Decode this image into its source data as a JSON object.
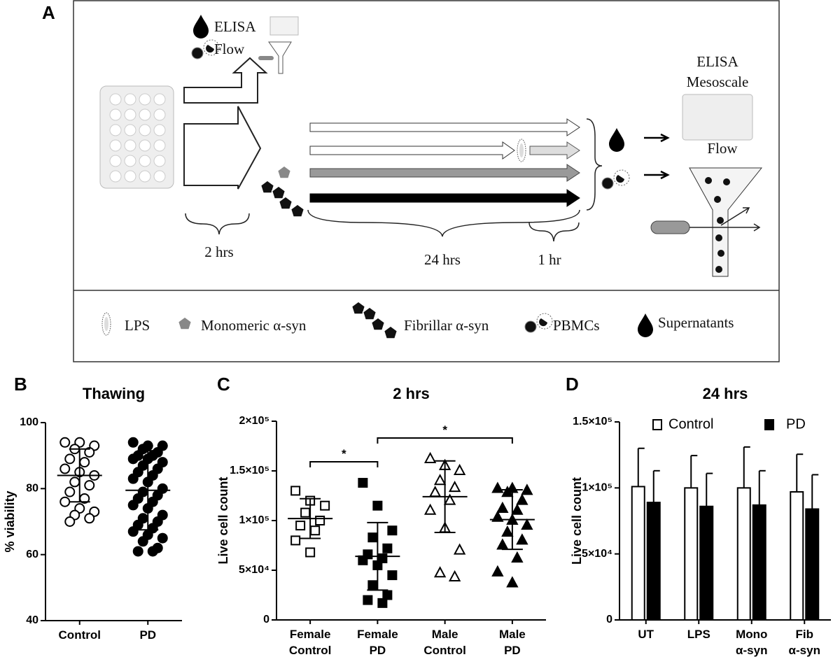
{
  "diagram": {
    "panel": "A",
    "top_labels": [
      "ELISA",
      "Flow"
    ],
    "durations": [
      "2 hrs",
      "24 hrs",
      "1 hr"
    ],
    "output_labels": [
      "ELISA",
      "Mesoscale",
      "Flow"
    ],
    "legend": [
      "LPS",
      "Monomeric α-syn",
      "Fibrillar α-syn",
      "PBMCs",
      "Supernatants"
    ]
  },
  "chart_data": [
    {
      "type": "dot",
      "panel": "B",
      "title": "Thawing",
      "ylabel": "% viability",
      "categories": [
        [
          "Control"
        ],
        [
          "PD"
        ]
      ],
      "values": [
        [
          94,
          94,
          93,
          92,
          91,
          89,
          88,
          86,
          85,
          84,
          82,
          81,
          79,
          77,
          76,
          74,
          73,
          72,
          71,
          70
        ],
        [
          94,
          93,
          93,
          92,
          91,
          90,
          90,
          89,
          89,
          88,
          87,
          86,
          85,
          84,
          83,
          82,
          80,
          79,
          78,
          77,
          76,
          75,
          74,
          72,
          71,
          70,
          69,
          68,
          67,
          66,
          65,
          64,
          62,
          61,
          61
        ]
      ],
      "means": [
        84,
        79.5
      ],
      "sds": [
        8,
        12
      ],
      "markers": [
        "open-circle",
        "filled-circle"
      ],
      "color": "#000000",
      "ylim": [
        40,
        100
      ],
      "yticks": [
        40,
        60,
        80,
        100
      ]
    },
    {
      "type": "dot",
      "panel": "C",
      "title": "2 hrs",
      "ylabel": "Live cell count",
      "categories": [
        [
          "Female",
          "Control"
        ],
        [
          "Female",
          "PD"
        ],
        [
          "Male",
          "Control"
        ],
        [
          "Male",
          "PD"
        ]
      ],
      "values": [
        [
          130000,
          120000,
          115000,
          108000,
          100000,
          95000,
          90000,
          80000,
          68000
        ],
        [
          138000,
          115000,
          90000,
          83000,
          72000,
          66000,
          62000,
          60000,
          55000,
          45000,
          35000,
          25000,
          20000,
          17000
        ],
        [
          162000,
          155000,
          150000,
          140000,
          133000,
          128000,
          120000,
          110000,
          92000,
          70000,
          47000,
          43000
        ],
        [
          132000,
          132000,
          130000,
          128000,
          120000,
          112000,
          110000,
          103000,
          100000,
          95000,
          88000,
          80000,
          75000,
          62000,
          48000,
          37000
        ]
      ],
      "means": [
        102000,
        64000,
        124000,
        101000
      ],
      "sds": [
        20000,
        34000,
        36000,
        30000
      ],
      "markers": [
        "open-square",
        "filled-square",
        "open-triangle",
        "filled-triangle"
      ],
      "color": "#000000",
      "annotations": [
        {
          "label": "*",
          "categories": [
            0,
            1
          ]
        },
        {
          "label": "*",
          "categories": [
            1,
            3
          ]
        }
      ],
      "ylim": [
        0,
        200000
      ],
      "yticks": [
        0,
        {
          "value": 50000,
          "label": "5×10⁴"
        },
        {
          "value": 100000,
          "label": "1×10⁵"
        },
        {
          "value": 150000,
          "label": "1.5×10⁵"
        },
        {
          "value": 200000,
          "label": "2×10⁵"
        }
      ]
    },
    {
      "type": "bar",
      "panel": "D",
      "title": "24 hrs",
      "ylabel": "Live cell count",
      "categories": [
        [
          "UT"
        ],
        [
          "LPS"
        ],
        [
          "Mono",
          "α-syn"
        ],
        [
          "Fib",
          "α-syn"
        ]
      ],
      "series": [
        {
          "name": "Control",
          "color": "#ffffff",
          "values": [
            101000,
            100000,
            100000,
            97000
          ],
          "errors": [
            29000,
            24500,
            31000,
            28500
          ]
        },
        {
          "name": "PD",
          "color": "#000000",
          "values": [
            89000,
            86000,
            87000,
            84000
          ],
          "errors": [
            24000,
            25000,
            26000,
            26000
          ]
        }
      ],
      "legend": "top",
      "ylim": [
        0,
        150000
      ],
      "yticks": [
        0,
        {
          "value": 50000,
          "label": "5×10⁴"
        },
        {
          "value": 100000,
          "label": "1×10⁵"
        },
        {
          "value": 150000,
          "label": "1.5×10⁵"
        }
      ]
    }
  ]
}
